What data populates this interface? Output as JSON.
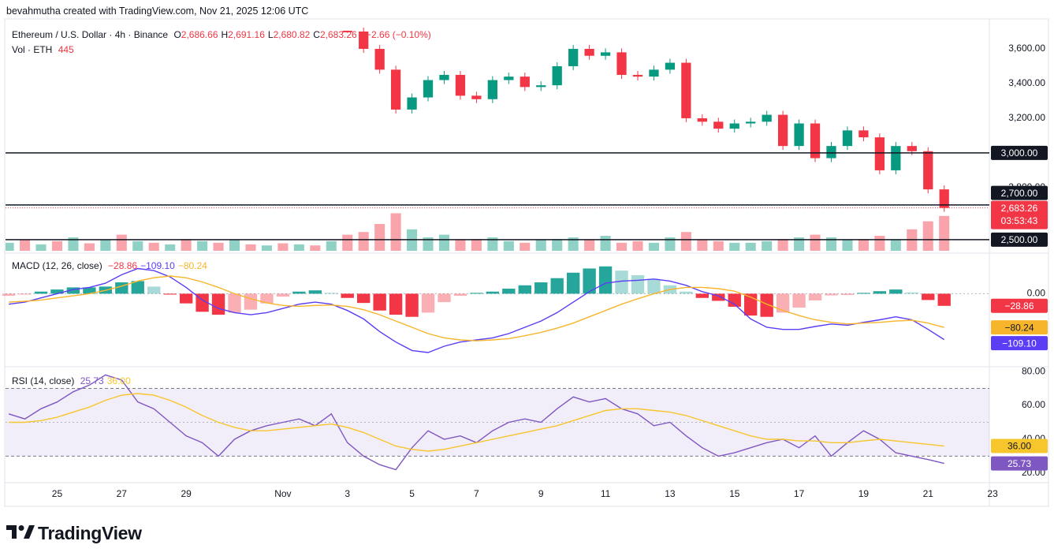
{
  "header": {
    "attribution": "bevahmutha created with TradingView.com, Nov 21, 2025 12:06 UTC",
    "symbol": "Ethereum / U.S. Dollar · 4h · Binance",
    "ohlc": [
      {
        "key": "O",
        "value": "2,686.66"
      },
      {
        "key": "H",
        "value": "2,691.16"
      },
      {
        "key": "L",
        "value": "2,680.82"
      },
      {
        "key": "C",
        "value": "2,683.26"
      }
    ],
    "change": "−2.66 (−0.10%)"
  },
  "chart_data": {
    "type": "candlestick",
    "up_color": "#089981",
    "down_color": "#f23645",
    "x": [
      23.5,
      24,
      24.5,
      25,
      25.5,
      26,
      26.5,
      27,
      27.5,
      28,
      28.5,
      29,
      29.5,
      30,
      30.5,
      31,
      31.5,
      32,
      32.5,
      33,
      33.5,
      34,
      34.5,
      35,
      35.5,
      36,
      36.5,
      37,
      37.5,
      38,
      38.5,
      39,
      39.5,
      40,
      40.5,
      41,
      41.5,
      42,
      42.5,
      43,
      43.5,
      44,
      44.5,
      45,
      45.5,
      46,
      46.5,
      47,
      47.5,
      48,
      48.5,
      49,
      49.5,
      50,
      50.5,
      51,
      51.5,
      52,
      52.5
    ],
    "xlim": [
      23.4,
      53.9
    ],
    "xticks": [
      25,
      27,
      29,
      {
        "value": 32,
        "label": "Nov"
      },
      {
        "value": 34,
        "label": "3"
      },
      {
        "value": 36,
        "label": "5"
      },
      {
        "value": 38,
        "label": "7"
      },
      {
        "value": 40,
        "label": "9"
      },
      {
        "value": 42,
        "label": "11"
      },
      {
        "value": 44,
        "label": "13"
      },
      {
        "value": 46,
        "label": "15"
      },
      {
        "value": 48,
        "label": "17"
      },
      {
        "value": 50,
        "label": "19"
      },
      {
        "value": 52,
        "label": "21"
      },
      {
        "value": 54,
        "label": "23"
      }
    ],
    "close": [
      null,
      null,
      null,
      null,
      null,
      null,
      null,
      null,
      null,
      null,
      null,
      null,
      null,
      null,
      null,
      null,
      null,
      null,
      null,
      null,
      null,
      3700,
      3600,
      3480,
      3250,
      3320,
      3420,
      3450,
      3330,
      3310,
      3420,
      3440,
      3380,
      3390,
      3500,
      3600,
      3560,
      3580,
      3450,
      3440,
      3480,
      3520,
      3200,
      3180,
      3140,
      3170,
      3180,
      3220,
      3040,
      3170,
      2970,
      3040,
      3130,
      3090,
      2900,
      3040,
      3010,
      2790,
      2683.26
    ],
    "last_label": "2,683.26",
    "countdown": "03:53:43",
    "ylim": [
      2436,
      3768
    ],
    "yticks": [
      {
        "value": 3600,
        "label": "3,600.00"
      },
      {
        "value": 3400,
        "label": "3,400.00"
      },
      {
        "value": 3200,
        "label": "3,200.00"
      },
      {
        "value": 2800,
        "label": "2,800.00"
      }
    ],
    "levels": [
      {
        "value": 3000,
        "label": "3,000.00"
      },
      {
        "value": 2700,
        "label": "2,700.00"
      },
      {
        "value": 2500,
        "label": "2,500.00"
      }
    ],
    "volume": {
      "title": "Vol · ETH",
      "last_label": "445",
      "ylim": [
        0,
        100
      ],
      "values": [
        15,
        20,
        12,
        18,
        25,
        14,
        20,
        30,
        18,
        15,
        12,
        22,
        18,
        15,
        20,
        12,
        10,
        14,
        12,
        10,
        18,
        30,
        35,
        50,
        70,
        40,
        25,
        30,
        20,
        22,
        25,
        18,
        15,
        20,
        22,
        25,
        20,
        28,
        15,
        18,
        15,
        25,
        35,
        20,
        18,
        15,
        15,
        18,
        22,
        25,
        30,
        25,
        20,
        22,
        28,
        20,
        40,
        55,
        65
      ]
    },
    "panes": [
      {
        "type": "macd",
        "title": "MACD (12, 26, close)",
        "ylim": [
          -170,
          89
        ],
        "yticks": [
          {
            "value": 0,
            "label": "0.00"
          }
        ],
        "series": [
          {
            "kind": "histogram",
            "color": "#f23645",
            "up_color": "#26a69a",
            "value_label": "−28.86",
            "values": [
              -5,
              -2,
              5,
              10,
              15,
              15,
              17,
              27,
              30,
              17,
              -2,
              -23,
              -43,
              -50,
              -45,
              -38,
              -23,
              -7,
              5,
              8,
              2,
              -10,
              -22,
              -40,
              -50,
              -55,
              -45,
              -20,
              -5,
              2,
              5,
              12,
              20,
              27,
              37,
              50,
              60,
              65,
              55,
              44,
              35,
              20,
              5,
              -10,
              -17,
              -31,
              -52,
              -55,
              -45,
              -33,
              -16,
              -4,
              -3,
              2,
              6,
              10,
              3,
              -15,
              -28.86
            ]
          },
          {
            "kind": "line",
            "color": "#5b3df5",
            "value_label": "−109.10",
            "values": [
              -25,
              -20,
              -10,
              0,
              10,
              15,
              25,
              45,
              60,
              55,
              40,
              15,
              -15,
              -35,
              -45,
              -50,
              -45,
              -35,
              -25,
              -20,
              -25,
              -40,
              -60,
              -90,
              -115,
              -135,
              -140,
              -125,
              -115,
              -110,
              -105,
              -95,
              -80,
              -65,
              -45,
              -20,
              5,
              25,
              30,
              32,
              35,
              30,
              20,
              5,
              -5,
              -25,
              -60,
              -80,
              -85,
              -85,
              -78,
              -72,
              -75,
              -68,
              -62,
              -55,
              -62,
              -85,
              -109.1
            ]
          },
          {
            "kind": "line",
            "color": "#f7b52c",
            "value_label": "−80.24",
            "values": [
              -20,
              -18,
              -15,
              -10,
              -5,
              0,
              8,
              18,
              30,
              38,
              42,
              38,
              28,
              15,
              0,
              -12,
              -22,
              -28,
              -30,
              -28,
              -27,
              -30,
              -38,
              -50,
              -65,
              -80,
              -95,
              -105,
              -110,
              -112,
              -110,
              -107,
              -100,
              -92,
              -82,
              -70,
              -55,
              -40,
              -25,
              -12,
              0,
              10,
              15,
              15,
              12,
              6,
              -8,
              -25,
              -40,
              -52,
              -62,
              -68,
              -72,
              -70,
              -68,
              -65,
              -63,
              -70,
              -80.24
            ]
          }
        ]
      },
      {
        "type": "rsi",
        "title": "RSI (14, close)",
        "ylim": [
          15.3,
          81.9
        ],
        "band": [
          30,
          70
        ],
        "middle": 50,
        "yticks": [
          {
            "value": 80,
            "label": "80.00"
          },
          {
            "value": 60,
            "label": "60.00"
          },
          {
            "value": 40,
            "label": "40.00"
          },
          {
            "value": 20,
            "label": "20.00"
          }
        ],
        "series": [
          {
            "kind": "line",
            "color": "#7e57c2",
            "value_label": "25.73",
            "values": [
              55,
              52,
              58,
              62,
              68,
              72,
              78,
              75,
              62,
              58,
              50,
              42,
              38,
              30,
              40,
              45,
              48,
              50,
              52,
              48,
              55,
              38,
              30,
              25,
              22,
              35,
              45,
              40,
              42,
              38,
              45,
              50,
              52,
              50,
              58,
              65,
              62,
              64,
              58,
              55,
              48,
              50,
              42,
              35,
              30,
              32,
              35,
              38,
              40,
              35,
              42,
              30,
              38,
              45,
              40,
              32,
              30,
              28,
              25.73
            ]
          },
          {
            "kind": "line",
            "color": "#f7c52c",
            "value_label": "36.00",
            "values": [
              50,
              50,
              51,
              53,
              56,
              59,
              63,
              66,
              67,
              66,
              63,
              59,
              54,
              50,
              47,
              45,
              45,
              46,
              47,
              48,
              49,
              47,
              44,
              40,
              36,
              34,
              33,
              34,
              36,
              38,
              40,
              42,
              44,
              46,
              48,
              51,
              54,
              57,
              58,
              58,
              57,
              56,
              54,
              51,
              48,
              45,
              42,
              40,
              40,
              39,
              39,
              38,
              38,
              39,
              40,
              39,
              38,
              37,
              36.0
            ]
          }
        ]
      }
    ]
  },
  "footer": {
    "logo": "TradingView"
  }
}
